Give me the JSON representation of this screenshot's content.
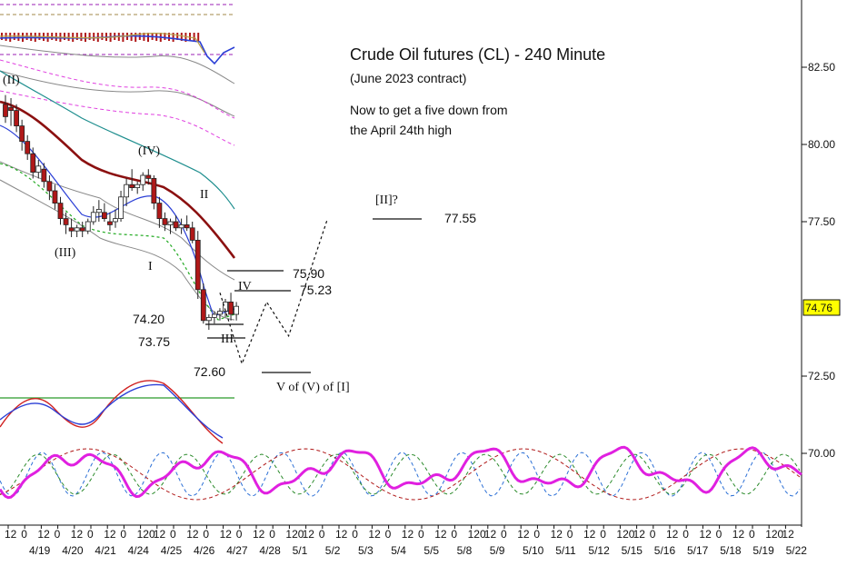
{
  "chart_data": {
    "type": "candlestick",
    "title": "Crude Oil futures (CL) - 240 Minute",
    "subtitle": "(June 2023 contract)",
    "note_lines": [
      "Now to get a five down from",
      "the April 24th high"
    ],
    "current_price": "74.76",
    "y_axis": {
      "ylim": [
        68.2,
        84.8
      ],
      "ticks": [
        {
          "value": 82.5,
          "label": "82.50"
        },
        {
          "value": 80.0,
          "label": "80.00"
        },
        {
          "value": 77.5,
          "label": "77.50"
        },
        {
          "value": 72.5,
          "label": "72.50"
        },
        {
          "value": 70.0,
          "label": "70.00"
        }
      ]
    },
    "x_axis": {
      "hour_labels": [
        "12",
        "0",
        "12",
        "0",
        "12",
        "0",
        "12",
        "0",
        "120",
        "12",
        "0",
        "12",
        "0",
        "12",
        "0",
        "12",
        "0",
        "120",
        "12",
        "0",
        "12",
        "0",
        "12",
        "0",
        "12",
        "0",
        "12",
        "0",
        "120",
        "12",
        "0",
        "12",
        "0",
        "12",
        "0",
        "12",
        "0",
        "120",
        "12",
        "0",
        "12",
        "0",
        "12",
        "0",
        "12",
        "0",
        "120",
        "12"
      ],
      "date_labels": [
        "4/19",
        "4/20",
        "4/21",
        "4/24",
        "4/25",
        "4/26",
        "4/27",
        "4/28",
        "5/1",
        "5/2",
        "5/3",
        "5/4",
        "5/5",
        "5/8",
        "5/9",
        "5/10",
        "5/11",
        "5/12",
        "5/15",
        "5/16",
        "5/17",
        "5/18",
        "5/19",
        "5/22"
      ]
    },
    "candles": [
      {
        "o": 81.3,
        "h": 81.6,
        "l": 80.7,
        "c": 80.9
      },
      {
        "o": 81.2,
        "h": 81.5,
        "l": 80.6,
        "c": 81.1
      },
      {
        "o": 81.1,
        "h": 81.3,
        "l": 80.4,
        "c": 80.6
      },
      {
        "o": 80.6,
        "h": 80.8,
        "l": 79.8,
        "c": 80.1
      },
      {
        "o": 80.1,
        "h": 80.3,
        "l": 79.5,
        "c": 79.7
      },
      {
        "o": 79.7,
        "h": 79.9,
        "l": 78.9,
        "c": 79.1
      },
      {
        "o": 79.1,
        "h": 79.5,
        "l": 78.9,
        "c": 79.3
      },
      {
        "o": 79.2,
        "h": 79.4,
        "l": 78.6,
        "c": 78.8
      },
      {
        "o": 78.8,
        "h": 79.0,
        "l": 78.2,
        "c": 78.5
      },
      {
        "o": 78.5,
        "h": 78.7,
        "l": 77.9,
        "c": 78.1
      },
      {
        "o": 78.1,
        "h": 78.3,
        "l": 77.4,
        "c": 77.6
      },
      {
        "o": 77.6,
        "h": 77.8,
        "l": 77.1,
        "c": 77.4
      },
      {
        "o": 77.3,
        "h": 77.6,
        "l": 77.0,
        "c": 77.2
      },
      {
        "o": 77.2,
        "h": 77.4,
        "l": 77.0,
        "c": 77.3
      },
      {
        "o": 77.3,
        "h": 77.5,
        "l": 77.0,
        "c": 77.2
      },
      {
        "o": 77.2,
        "h": 77.6,
        "l": 77.1,
        "c": 77.5
      },
      {
        "o": 77.5,
        "h": 78.0,
        "l": 77.4,
        "c": 77.8
      },
      {
        "o": 77.8,
        "h": 78.2,
        "l": 77.5,
        "c": 77.9
      },
      {
        "o": 77.8,
        "h": 78.1,
        "l": 77.5,
        "c": 77.6
      },
      {
        "o": 77.5,
        "h": 77.8,
        "l": 77.2,
        "c": 77.4
      },
      {
        "o": 77.5,
        "h": 77.9,
        "l": 77.3,
        "c": 77.6
      },
      {
        "o": 77.6,
        "h": 78.5,
        "l": 77.5,
        "c": 78.3
      },
      {
        "o": 78.3,
        "h": 78.9,
        "l": 78.0,
        "c": 78.7
      },
      {
        "o": 78.7,
        "h": 79.2,
        "l": 78.5,
        "c": 78.6
      },
      {
        "o": 78.6,
        "h": 78.8,
        "l": 78.4,
        "c": 78.7
      },
      {
        "o": 78.7,
        "h": 79.1,
        "l": 78.5,
        "c": 79.0
      },
      {
        "o": 79.0,
        "h": 79.2,
        "l": 78.7,
        "c": 78.9
      },
      {
        "o": 78.9,
        "h": 79.0,
        "l": 77.9,
        "c": 78.1
      },
      {
        "o": 78.1,
        "h": 78.3,
        "l": 77.3,
        "c": 77.6
      },
      {
        "o": 77.6,
        "h": 77.8,
        "l": 77.2,
        "c": 77.4
      },
      {
        "o": 77.4,
        "h": 77.6,
        "l": 77.1,
        "c": 77.5
      },
      {
        "o": 77.5,
        "h": 77.7,
        "l": 77.2,
        "c": 77.3
      },
      {
        "o": 77.3,
        "h": 77.6,
        "l": 77.1,
        "c": 77.4
      },
      {
        "o": 77.4,
        "h": 77.7,
        "l": 77.2,
        "c": 77.3
      },
      {
        "o": 77.3,
        "h": 77.5,
        "l": 76.8,
        "c": 76.9
      },
      {
        "o": 76.9,
        "h": 77.2,
        "l": 75.0,
        "c": 75.3
      },
      {
        "o": 75.3,
        "h": 75.5,
        "l": 74.2,
        "c": 74.3
      },
      {
        "o": 74.3,
        "h": 74.5,
        "l": 74.0,
        "c": 74.4
      },
      {
        "o": 74.4,
        "h": 74.6,
        "l": 74.2,
        "c": 74.5
      },
      {
        "o": 74.5,
        "h": 74.7,
        "l": 74.3,
        "c": 74.6
      },
      {
        "o": 74.6,
        "h": 75.0,
        "l": 74.4,
        "c": 74.9
      },
      {
        "o": 74.9,
        "h": 75.2,
        "l": 74.3,
        "c": 74.5
      },
      {
        "o": 74.5,
        "h": 74.9,
        "l": 74.3,
        "c": 74.76
      }
    ],
    "projected_path": [
      {
        "t": 39.5,
        "v": 75.2
      },
      {
        "t": 43.5,
        "v": 72.9
      },
      {
        "t": 48,
        "v": 74.9
      },
      {
        "t": 52,
        "v": 73.8
      },
      {
        "t": 59,
        "v": 77.55
      }
    ],
    "levels": [
      {
        "value": 75.9,
        "label": "75.90"
      },
      {
        "value": 75.23,
        "label": "75.23"
      },
      {
        "value": 74.2,
        "label": "74.20"
      },
      {
        "value": 73.75,
        "label": "73.75"
      },
      {
        "value": 72.6,
        "label": "72.60"
      },
      {
        "value": 77.55,
        "label": "77.55"
      }
    ],
    "wave_labels": [
      "(II)",
      "(IV)",
      "II",
      "(III)",
      "I",
      "IV",
      "III",
      "[II]?",
      "V of (V) of [I]"
    ],
    "colors": {
      "candle_up": "#1a7a1a",
      "candle_down": "#b01818",
      "wma": "#8b1010",
      "ma_blue": "#2b3fd6",
      "ma_green": "#22aa22",
      "ma_teal": "#1e8e8e",
      "band_gray": "#777777",
      "band_magenta": "#e040e0",
      "cycle_composite": "#e020e0",
      "price_badge": "#ffff00"
    }
  }
}
